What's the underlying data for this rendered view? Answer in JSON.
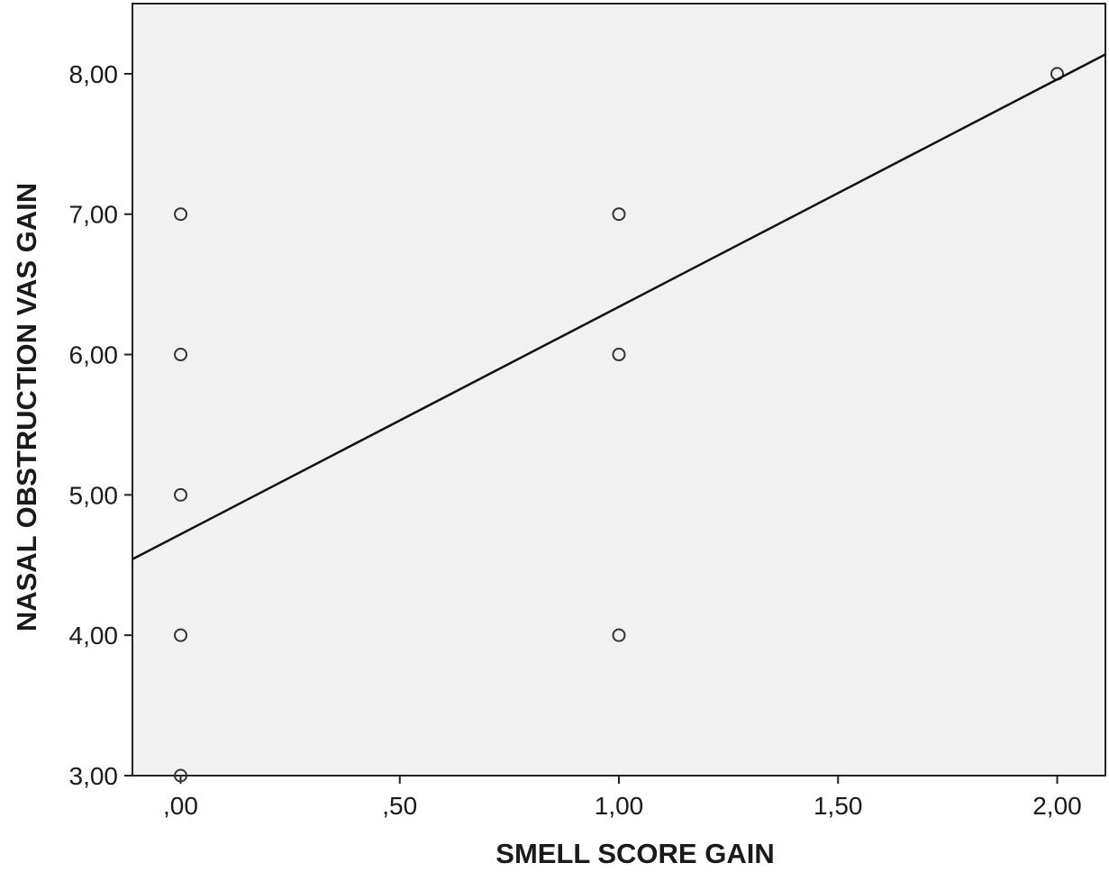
{
  "chart_data": {
    "type": "scatter",
    "title": "",
    "xlabel": "SMELL SCORE GAIN",
    "ylabel": "NASAL OBSTRUCTION VAS GAIN",
    "xlim": [
      -0.11,
      2.11
    ],
    "ylim": [
      3.0,
      8.5
    ],
    "x_ticks": [
      0,
      0.5,
      1.0,
      1.5,
      2.0
    ],
    "x_tick_labels": [
      ",00",
      ",50",
      "1,00",
      "1,50",
      "2,00"
    ],
    "y_ticks": [
      3,
      4,
      5,
      6,
      7,
      8
    ],
    "y_tick_labels": [
      "3,00",
      "4,00",
      "5,00",
      "6,00",
      "7,00",
      "8,00"
    ],
    "grid": false,
    "series": [
      {
        "points": [
          {
            "x": 0,
            "y": 3
          },
          {
            "x": 0,
            "y": 4
          },
          {
            "x": 0,
            "y": 5
          },
          {
            "x": 0,
            "y": 6
          },
          {
            "x": 0,
            "y": 7
          },
          {
            "x": 1,
            "y": 4
          },
          {
            "x": 1,
            "y": 6
          },
          {
            "x": 1,
            "y": 7
          },
          {
            "x": 2,
            "y": 8
          }
        ]
      }
    ],
    "fit_line": {
      "type": "linear",
      "intercept": 4.72,
      "slope": 1.62
    },
    "colors": {
      "plot_background": "#f1f1f1",
      "marker": "#333333",
      "line": "#111111",
      "frame": "#222222"
    }
  }
}
